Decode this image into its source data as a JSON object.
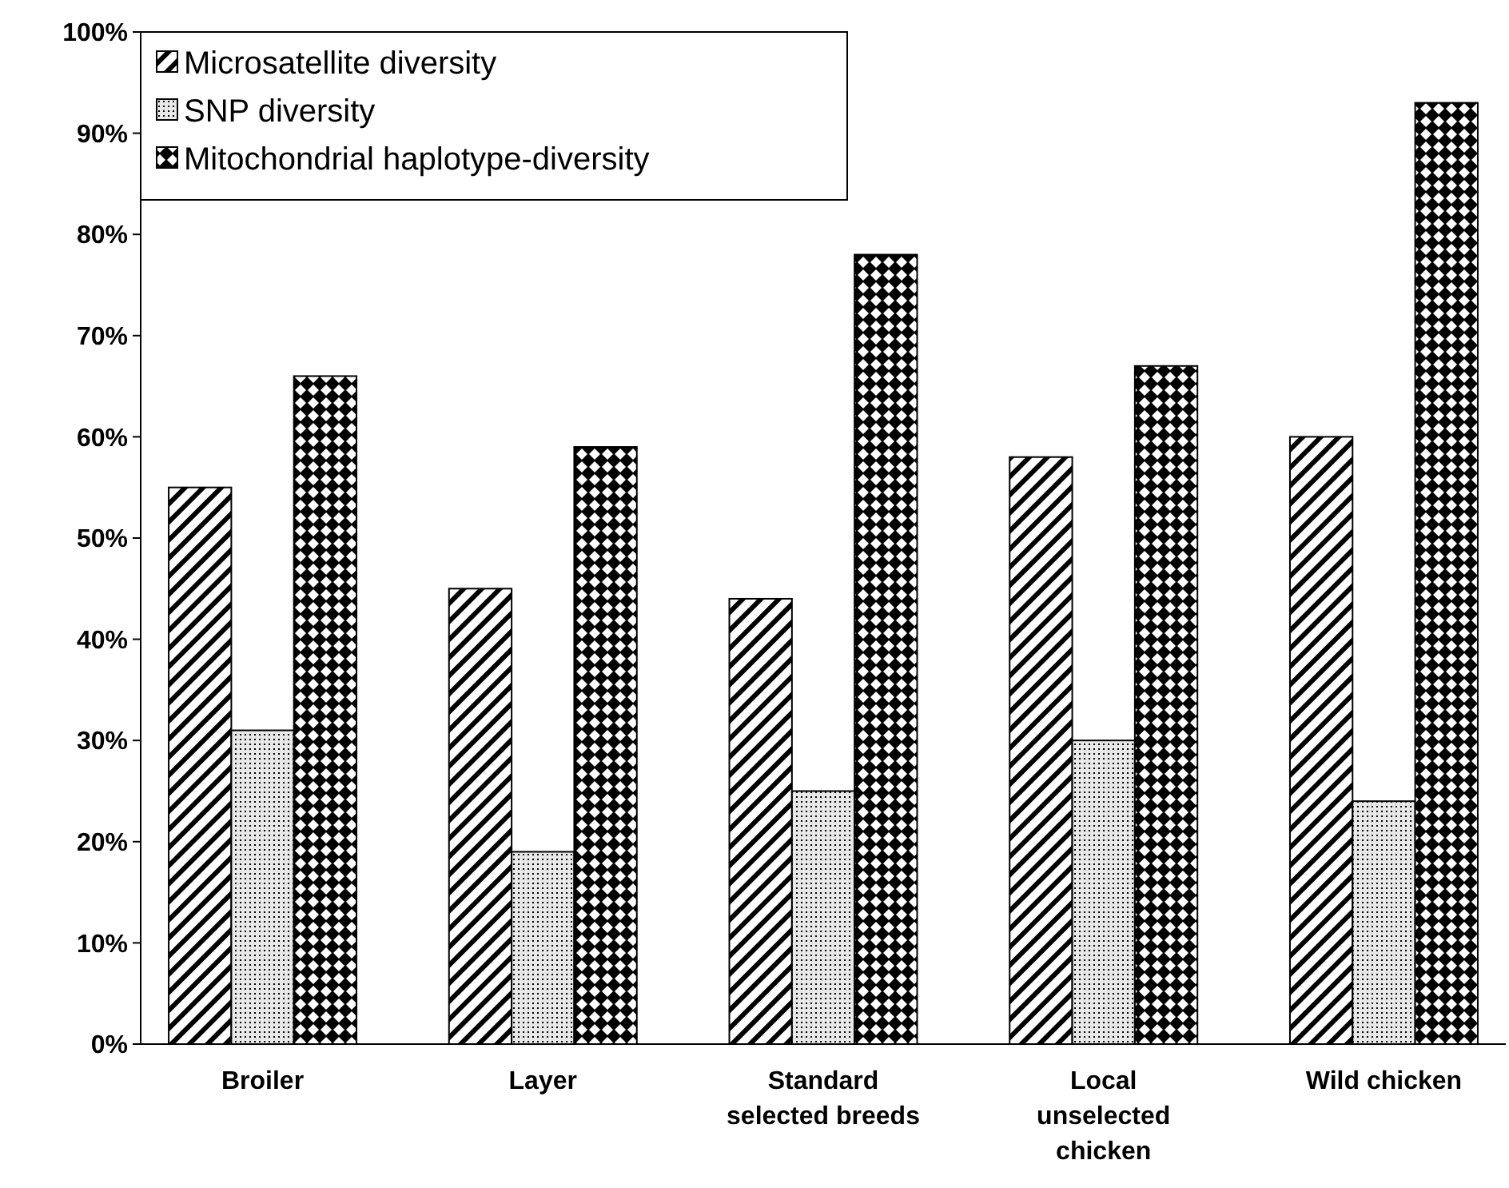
{
  "chart_data": {
    "type": "bar",
    "categories": [
      "Broiler",
      "Layer",
      "Standard selected breeds",
      "Local unselected chicken",
      "Wild chicken"
    ],
    "series": [
      {
        "name": "Microsatellite diversity",
        "color": "#000000",
        "values": [
          55,
          45,
          44,
          58,
          60
        ]
      },
      {
        "name": "SNP diversity",
        "color": "#000000",
        "values": [
          31,
          19,
          25,
          30,
          24
        ]
      },
      {
        "name": "Mitochondrial haplotype-diversity",
        "color": "#000000",
        "values": [
          66,
          59,
          78,
          67,
          93
        ]
      }
    ],
    "ylim": [
      0,
      100
    ],
    "yticks": [
      {
        "value": 0,
        "label": "0%"
      },
      {
        "value": 10,
        "label": "10%"
      },
      {
        "value": 20,
        "label": "20%"
      },
      {
        "value": 30,
        "label": "30%"
      },
      {
        "value": 40,
        "label": "40%"
      },
      {
        "value": 50,
        "label": "50%"
      },
      {
        "value": 60,
        "label": "60%"
      },
      {
        "value": 70,
        "label": "70%"
      },
      {
        "value": 80,
        "label": "80%"
      },
      {
        "value": 90,
        "label": "90%"
      },
      {
        "value": 100,
        "label": "100%"
      }
    ],
    "grid": false,
    "legend": "top left"
  }
}
